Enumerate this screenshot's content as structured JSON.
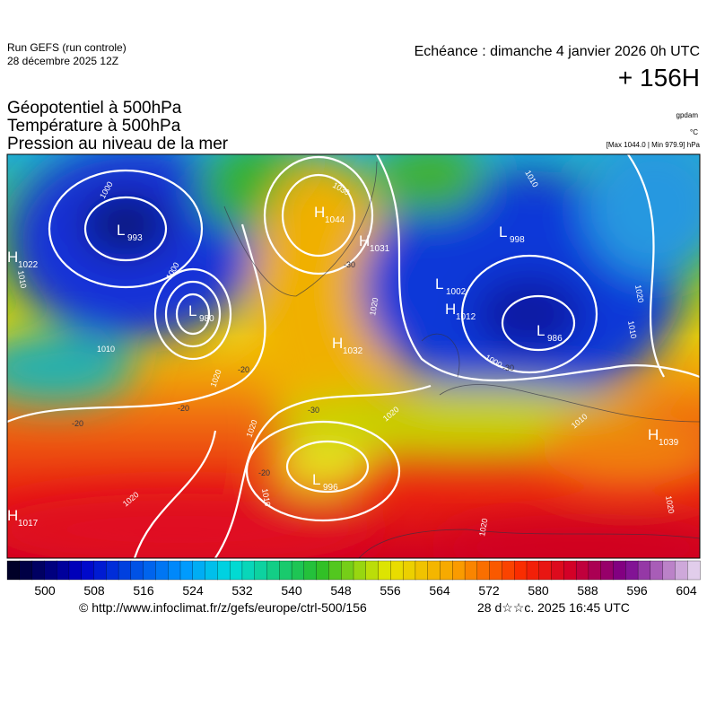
{
  "header": {
    "run": "Run GEFS (run controle)",
    "run_date": "28 décembre 2025 12Z",
    "valid": "Echéance : dimanche 4 janvier 2026 0h UTC",
    "lead": "+ 156H",
    "fields": [
      "Géopotentiel à 500hPa",
      "Température à 500hPa",
      "Pression au niveau de la mer"
    ],
    "units": [
      "gpdam",
      "°C"
    ],
    "range": "[Max 1044.0 | Min 979.9] hPa"
  },
  "map": {
    "centers": [
      {
        "kind": "L",
        "value": 993
      },
      {
        "kind": "H",
        "value": 1022
      },
      {
        "kind": "L",
        "value": 980
      },
      {
        "kind": "H",
        "value": 1044
      },
      {
        "kind": "H",
        "value": 1031
      },
      {
        "kind": "H",
        "value": 1032
      },
      {
        "kind": "L",
        "value": 998
      },
      {
        "kind": "L",
        "value": 1002
      },
      {
        "kind": "H",
        "value": 1012
      },
      {
        "kind": "L",
        "value": 986
      },
      {
        "kind": "L",
        "value": 996
      },
      {
        "kind": "H",
        "value": 1039
      },
      {
        "kind": "H",
        "value": 1017
      }
    ],
    "isobar_labels": [
      1000,
      1030,
      1010,
      1000,
      1010,
      1010,
      1020,
      1020,
      1020,
      1010,
      1020,
      1000,
      1020,
      1010,
      1020,
      1020,
      1010,
      1020
    ],
    "temperature_labels": [
      -20,
      -20,
      -20,
      -30,
      -30,
      -20,
      -30
    ]
  },
  "colorbar": {
    "labels": [
      500,
      508,
      516,
      524,
      532,
      540,
      548,
      556,
      564,
      572,
      580,
      588,
      596,
      604
    ]
  },
  "footer": {
    "url": "© http://www.infoclimat.fr/z/gefs/europe/ctrl-500/156",
    "time": "28 d☆☆c. 2025 16:45 UTC"
  }
}
